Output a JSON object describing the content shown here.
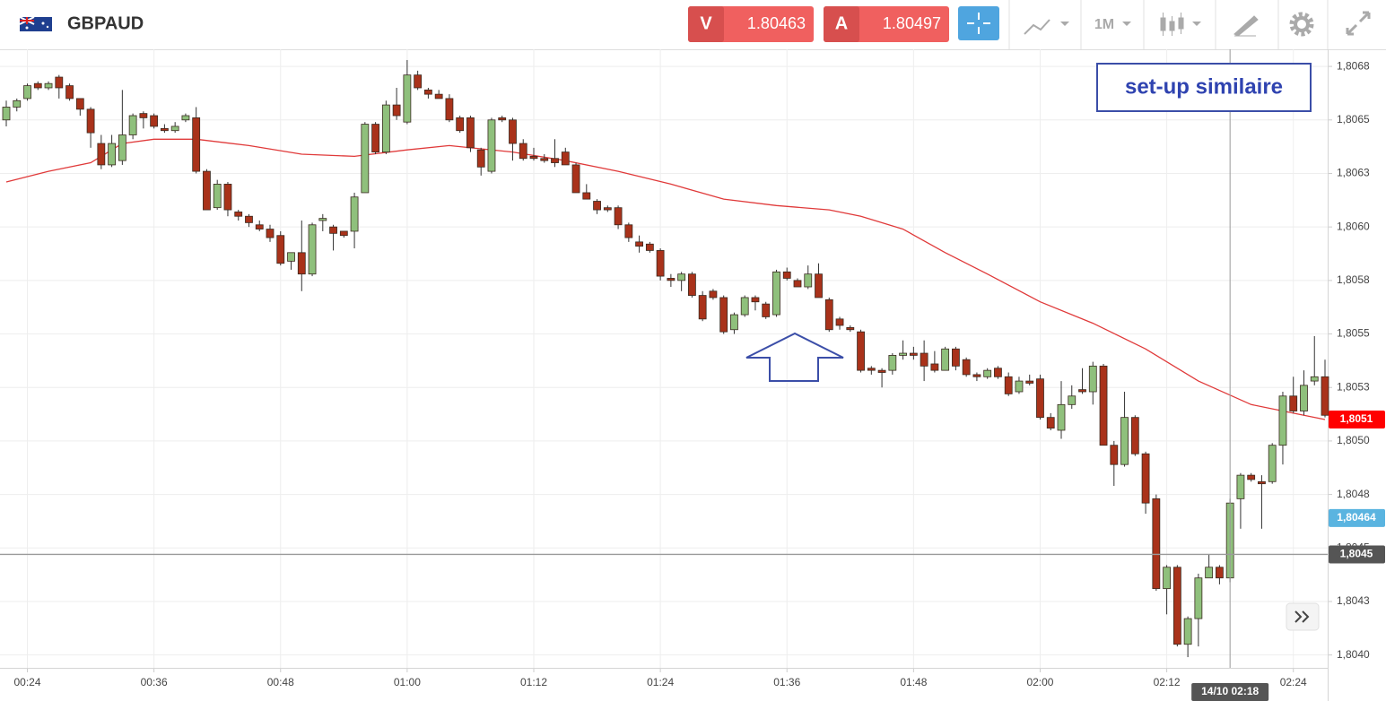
{
  "header": {
    "symbol": "GBPAUD",
    "sell": {
      "label": "V",
      "price": 1.80463
    },
    "buy": {
      "label": "A",
      "price": 1.80497
    },
    "timeframe": "1M"
  },
  "chart_data": {
    "type": "candlestick",
    "x": [
      "00:22",
      "00:23",
      "00:24",
      "00:25",
      "00:26",
      "00:27",
      "00:28",
      "00:29",
      "00:30",
      "00:31",
      "00:32",
      "00:33",
      "00:34",
      "00:35",
      "00:36",
      "00:37",
      "00:38",
      "00:39",
      "00:40",
      "00:41",
      "00:42",
      "00:43",
      "00:44",
      "00:45",
      "00:46",
      "00:47",
      "00:48",
      "00:49",
      "00:50",
      "00:51",
      "00:52",
      "00:53",
      "00:54",
      "00:55",
      "00:56",
      "00:57",
      "00:58",
      "00:59",
      "01:00",
      "01:01",
      "01:02",
      "01:03",
      "01:04",
      "01:05",
      "01:06",
      "01:07",
      "01:08",
      "01:09",
      "01:10",
      "01:11",
      "01:12",
      "01:13",
      "01:14",
      "01:15",
      "01:16",
      "01:17",
      "01:18",
      "01:19",
      "01:20",
      "01:21",
      "01:22",
      "01:23",
      "01:24",
      "01:25",
      "01:26",
      "01:27",
      "01:28",
      "01:29",
      "01:30",
      "01:31",
      "01:32",
      "01:33",
      "01:34",
      "01:35",
      "01:36",
      "01:37",
      "01:38",
      "01:39",
      "01:40",
      "01:41",
      "01:42",
      "01:43",
      "01:44",
      "01:45",
      "01:46",
      "01:47",
      "01:48",
      "01:49",
      "01:50",
      "01:51",
      "01:52",
      "01:53",
      "01:54",
      "01:55",
      "01:56",
      "01:57",
      "01:58",
      "01:59",
      "02:00",
      "02:01",
      "02:02",
      "02:03",
      "02:04",
      "02:05",
      "02:06",
      "02:07",
      "02:08",
      "02:09",
      "02:10",
      "02:11",
      "02:12",
      "02:13",
      "02:14",
      "02:15",
      "02:16",
      "02:17",
      "02:18",
      "02:19",
      "02:20",
      "02:21",
      "02:22",
      "02:23",
      "02:24",
      "02:25",
      "02:26",
      "02:27"
    ],
    "open": [
      1.8065,
      1.80656,
      1.8066,
      1.80667,
      1.80665,
      1.8067,
      1.80666,
      1.8066,
      1.80655,
      1.80639,
      1.80629,
      1.80631,
      1.80643,
      1.80653,
      1.80652,
      1.80646,
      1.80645,
      1.8065,
      1.80651,
      1.80626,
      1.80609,
      1.8062,
      1.80607,
      1.80605,
      1.80601,
      1.80599,
      1.80596,
      1.80584,
      1.80588,
      1.80578,
      1.80603,
      1.806,
      1.80598,
      1.80598,
      1.80616,
      1.80648,
      1.80635,
      1.80657,
      1.80649,
      1.80671,
      1.80664,
      1.80662,
      1.8066,
      1.80651,
      1.80651,
      1.80636,
      1.80626,
      1.80651,
      1.8065,
      1.80639,
      1.80633,
      1.80632,
      1.80632,
      1.80635,
      1.80629,
      1.80616,
      1.80612,
      1.80609,
      1.80609,
      1.80601,
      1.80593,
      1.80592,
      1.80589,
      1.80576,
      1.80575,
      1.80578,
      1.80568,
      1.8057,
      1.80567,
      1.80552,
      1.80559,
      1.80567,
      1.80564,
      1.80559,
      1.80579,
      1.80575,
      1.80572,
      1.80578,
      1.80566,
      1.80557,
      1.80553,
      1.80551,
      1.80534,
      1.80533,
      1.80533,
      1.8054,
      1.80541,
      1.80541,
      1.80536,
      1.80533,
      1.80543,
      1.80538,
      1.80531,
      1.8053,
      1.80534,
      1.8053,
      1.80523,
      1.80528,
      1.80529,
      1.80511,
      1.80505,
      1.80517,
      1.80524,
      1.80523,
      1.80535,
      1.80498,
      1.80489,
      1.80511,
      1.80494,
      1.80473,
      1.80431,
      1.80441,
      1.80405,
      1.80417,
      1.80436,
      1.80441,
      1.80436,
      1.80473,
      1.80484,
      1.80481,
      1.80481,
      1.80498,
      1.80521,
      1.80514,
      1.80528,
      1.8053
    ],
    "high": [
      1.80659,
      1.8066,
      1.80667,
      1.80668,
      1.80668,
      1.80671,
      1.80667,
      1.8066,
      1.80656,
      1.80643,
      1.80643,
      1.80664,
      1.80653,
      1.80654,
      1.80653,
      1.80648,
      1.80649,
      1.80653,
      1.80656,
      1.80627,
      1.80622,
      1.80621,
      1.80608,
      1.80606,
      1.80603,
      1.80601,
      1.80598,
      1.80588,
      1.80603,
      1.80602,
      1.80606,
      1.80601,
      1.80598,
      1.80616,
      1.80649,
      1.80649,
      1.80659,
      1.80665,
      1.80678,
      1.80673,
      1.80665,
      1.80664,
      1.80662,
      1.80652,
      1.80652,
      1.80637,
      1.80651,
      1.80652,
      1.80651,
      1.80641,
      1.80637,
      1.80634,
      1.80641,
      1.80637,
      1.8063,
      1.8062,
      1.80613,
      1.8061,
      1.8061,
      1.80602,
      1.80596,
      1.80593,
      1.8059,
      1.80578,
      1.80579,
      1.80579,
      1.8057,
      1.80571,
      1.80568,
      1.8056,
      1.80568,
      1.80568,
      1.80565,
      1.8058,
      1.80581,
      1.80576,
      1.80582,
      1.80583,
      1.80567,
      1.80558,
      1.80554,
      1.80552,
      1.80535,
      1.80534,
      1.80541,
      1.80547,
      1.80544,
      1.80547,
      1.80542,
      1.80544,
      1.80544,
      1.80539,
      1.80532,
      1.80534,
      1.80535,
      1.80532,
      1.8053,
      1.80531,
      1.80531,
      1.80513,
      1.80528,
      1.80526,
      1.80534,
      1.80537,
      1.80536,
      1.805,
      1.80523,
      1.80512,
      1.80495,
      1.80475,
      1.80442,
      1.80442,
      1.80418,
      1.80438,
      1.80447,
      1.80442,
      1.80473,
      1.80485,
      1.80485,
      1.80484,
      1.80499,
      1.80523,
      1.8053,
      1.80533,
      1.80549,
      1.80538
    ],
    "low": [
      1.80647,
      1.80654,
      1.80659,
      1.80664,
      1.80664,
      1.8066,
      1.80659,
      1.80652,
      1.80637,
      1.80627,
      1.80628,
      1.80629,
      1.80641,
      1.80646,
      1.80646,
      1.80644,
      1.80644,
      1.80649,
      1.80625,
      1.80608,
      1.80608,
      1.80605,
      1.80603,
      1.806,
      1.80598,
      1.80593,
      1.80582,
      1.8058,
      1.8057,
      1.80577,
      1.80598,
      1.80589,
      1.80595,
      1.8059,
      1.80616,
      1.80634,
      1.80634,
      1.8065,
      1.80648,
      1.80664,
      1.8066,
      1.8066,
      1.80649,
      1.80644,
      1.80635,
      1.80624,
      1.80625,
      1.80649,
      1.80631,
      1.80631,
      1.80631,
      1.8063,
      1.80628,
      1.80629,
      1.80616,
      1.80613,
      1.80606,
      1.80607,
      1.80599,
      1.80593,
      1.80588,
      1.80588,
      1.80575,
      1.80572,
      1.8057,
      1.80567,
      1.80556,
      1.80566,
      1.8055,
      1.8055,
      1.80558,
      1.80561,
      1.80557,
      1.80558,
      1.80575,
      1.80572,
      1.80571,
      1.80567,
      1.80551,
      1.80552,
      1.80551,
      1.80532,
      1.80531,
      1.80525,
      1.80531,
      1.80538,
      1.80538,
      1.80528,
      1.80532,
      1.80533,
      1.80533,
      1.8053,
      1.80528,
      1.80529,
      1.80529,
      1.80521,
      1.80522,
      1.80526,
      1.8051,
      1.80505,
      1.80501,
      1.80515,
      1.80522,
      1.80517,
      1.80498,
      1.80479,
      1.80488,
      1.80493,
      1.80466,
      1.8043,
      1.80419,
      1.80404,
      1.80399,
      1.80404,
      1.80436,
      1.80433,
      1.80434,
      1.80459,
      1.80481,
      1.80459,
      1.8048,
      1.80489,
      1.80513,
      1.80512,
      1.80526,
      1.80511
    ],
    "close": [
      1.80656,
      1.80659,
      1.80666,
      1.80665,
      1.80667,
      1.80665,
      1.8066,
      1.80655,
      1.80644,
      1.80629,
      1.80639,
      1.80643,
      1.80652,
      1.80651,
      1.80647,
      1.80645,
      1.80647,
      1.80652,
      1.80626,
      1.80608,
      1.8062,
      1.80608,
      1.80605,
      1.80602,
      1.80599,
      1.80595,
      1.80583,
      1.80588,
      1.80578,
      1.80601,
      1.80604,
      1.80597,
      1.80596,
      1.80614,
      1.80648,
      1.80635,
      1.80657,
      1.80652,
      1.80671,
      1.80665,
      1.80662,
      1.8066,
      1.8065,
      1.80645,
      1.80637,
      1.80628,
      1.8065,
      1.8065,
      1.80639,
      1.80632,
      1.80632,
      1.80631,
      1.8063,
      1.80629,
      1.80616,
      1.80613,
      1.80608,
      1.80608,
      1.80601,
      1.80595,
      1.80591,
      1.80589,
      1.80577,
      1.80575,
      1.80578,
      1.80568,
      1.80557,
      1.80567,
      1.80551,
      1.80559,
      1.80567,
      1.80565,
      1.80558,
      1.80579,
      1.80576,
      1.80572,
      1.80578,
      1.80567,
      1.80552,
      1.80554,
      1.80552,
      1.80533,
      1.80533,
      1.80532,
      1.8054,
      1.80541,
      1.8054,
      1.80535,
      1.80533,
      1.80543,
      1.80535,
      1.80531,
      1.8053,
      1.80533,
      1.8053,
      1.80522,
      1.80528,
      1.80527,
      1.80511,
      1.80506,
      1.80517,
      1.80521,
      1.80523,
      1.80535,
      1.80498,
      1.80489,
      1.80511,
      1.80494,
      1.80471,
      1.80431,
      1.80441,
      1.80405,
      1.80417,
      1.80436,
      1.80441,
      1.80436,
      1.80471,
      1.80484,
      1.80482,
      1.8048,
      1.80498,
      1.80521,
      1.80514,
      1.80526,
      1.8053,
      1.80512
    ],
    "up_color": "#8fc07c",
    "down_color": "#a9321a",
    "ylim": [
      1.80394,
      1.80683
    ],
    "yticks": [
      {
        "value": 1.80675,
        "label": "1,8068"
      },
      {
        "value": 1.8065,
        "label": "1,8065"
      },
      {
        "value": 1.80625,
        "label": "1,8063"
      },
      {
        "value": 1.806,
        "label": "1,8060"
      },
      {
        "value": 1.80575,
        "label": "1,8058"
      },
      {
        "value": 1.8055,
        "label": "1,8055"
      },
      {
        "value": 1.80525,
        "label": "1,8053"
      },
      {
        "value": 1.805,
        "label": "1,8050"
      },
      {
        "value": 1.80475,
        "label": "1,8048"
      },
      {
        "value": 1.8045,
        "label": "1,8045"
      },
      {
        "value": 1.80425,
        "label": "1,8043"
      },
      {
        "value": 1.804,
        "label": "1,8040"
      }
    ],
    "xticks": [
      "00:24",
      "00:36",
      "00:48",
      "01:00",
      "01:12",
      "01:24",
      "01:36",
      "01:48",
      "02:00",
      "02:12",
      "02:24"
    ],
    "grid": true,
    "moving_average": {
      "color": "#e03a3a",
      "x": [
        "00:22",
        "00:26",
        "00:30",
        "00:33",
        "00:36",
        "00:40",
        "00:45",
        "00:50",
        "00:55",
        "01:00",
        "01:04",
        "01:10",
        "01:15",
        "01:20",
        "01:25",
        "01:30",
        "01:35",
        "01:40",
        "01:43",
        "01:47",
        "01:51",
        "01:55",
        "02:00",
        "02:05",
        "02:10",
        "02:15",
        "02:20",
        "02:24",
        "02:27"
      ],
      "values": [
        1.80621,
        1.80626,
        1.8063,
        1.80639,
        1.80641,
        1.80641,
        1.80638,
        1.80634,
        1.80633,
        1.80636,
        1.80638,
        1.80635,
        1.80631,
        1.80626,
        1.8062,
        1.80613,
        1.8061,
        1.80608,
        1.80605,
        1.80599,
        1.80588,
        1.80578,
        1.80565,
        1.80555,
        1.80543,
        1.80528,
        1.80517,
        1.80513,
        1.8051
      ]
    },
    "price_tags": [
      {
        "value": 1.8051,
        "label": "1,8051",
        "color": "#ff0000"
      },
      {
        "value": 1.80464,
        "label": "1,80464",
        "color": "#5ab4e0"
      },
      {
        "value": 1.80447,
        "label": "1,8045",
        "color": "#555555",
        "line": true
      }
    ],
    "crosshair": {
      "x": "02:18",
      "label": "14/10 02:18"
    },
    "annotation": "set-up similaire"
  }
}
